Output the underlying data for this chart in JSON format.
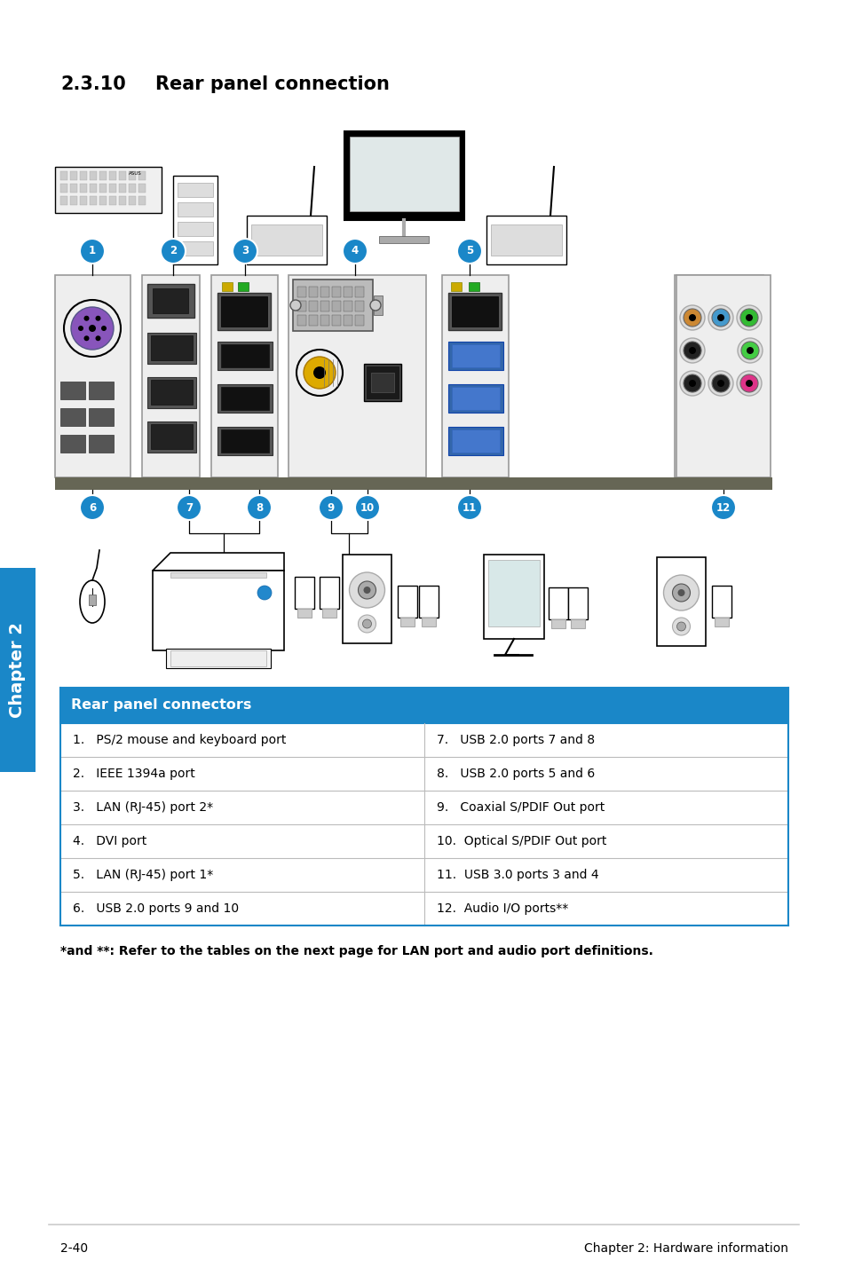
{
  "title_num": "2.3.10",
  "title_text": "Rear panel connection",
  "table_header": "Rear panel connectors",
  "table_header_bg": "#1a87c8",
  "table_header_color": "#ffffff",
  "table_rows_left": [
    "1.   PS/2 mouse and keyboard port",
    "2.   IEEE 1394a port",
    "3.   LAN (RJ-45) port 2*",
    "4.   DVI port",
    "5.   LAN (RJ-45) port 1*",
    "6.   USB 2.0 ports 9 and 10"
  ],
  "table_rows_right": [
    "7.   USB 2.0 ports 7 and 8",
    "8.   USB 2.0 ports 5 and 6",
    "9.   Coaxial S/PDIF Out port",
    "10.  Optical S/PDIF Out port",
    "11.  USB 3.0 ports 3 and 4",
    "12.  Audio I/O ports**"
  ],
  "footnote": "*and **: Refer to the tables on the next page for LAN port and audio port definitions.",
  "page_left": "2-40",
  "page_right": "Chapter 2: Hardware information",
  "chapter_label": "Chapter 2",
  "chapter_bg": "#1a87c8",
  "bg_color": "#ffffff",
  "table_border_color": "#1a87c8",
  "table_row_border": "#bbbbbb",
  "num_bg": "#1a87c8",
  "num_color": "#ffffff",
  "shelf_color": "#666655",
  "panel_color": "#e8e8e8",
  "panel_border": "#888888"
}
